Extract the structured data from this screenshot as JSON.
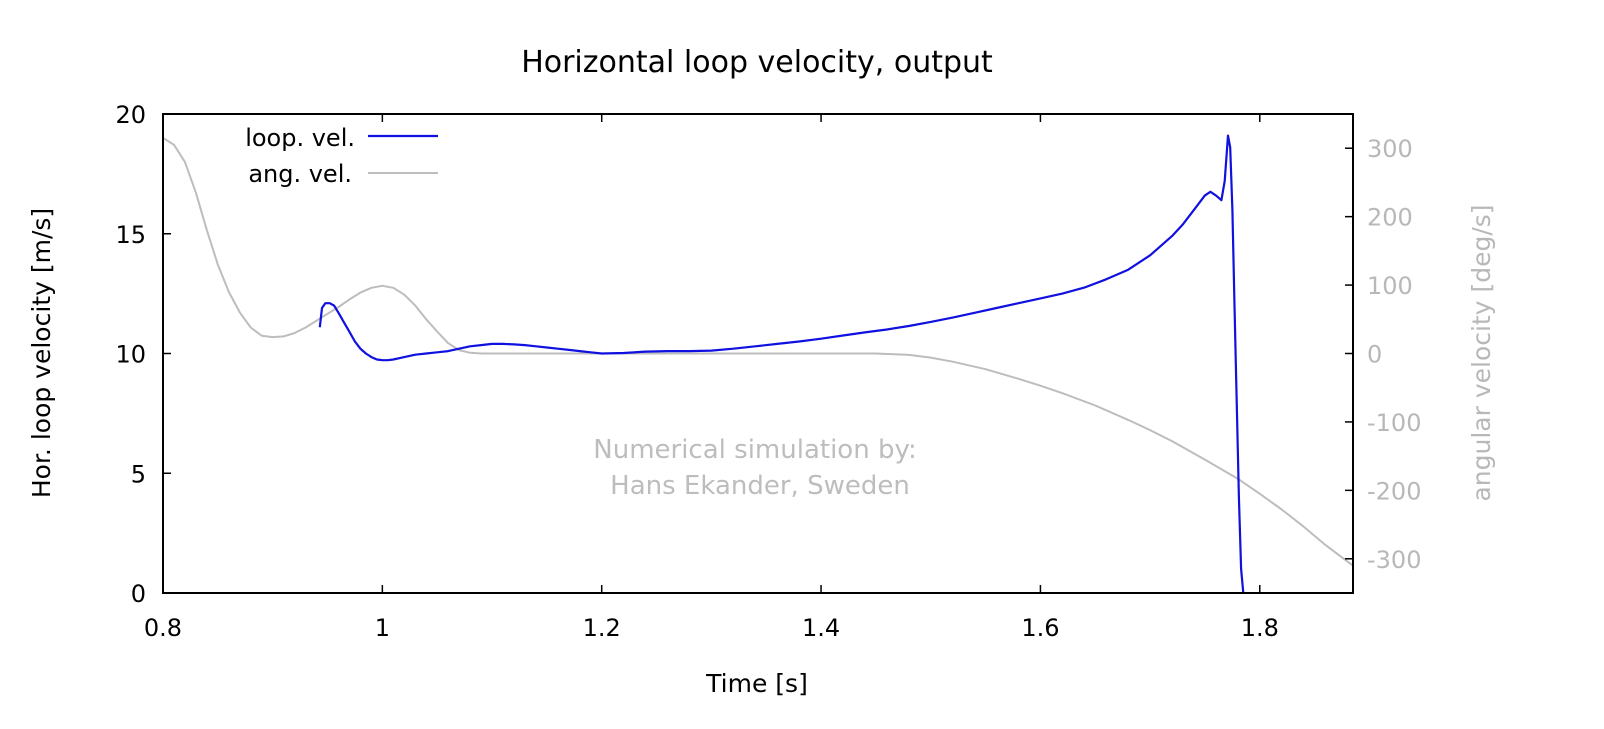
{
  "chart_data": {
    "type": "line",
    "title": "Horizontal loop velocity, output",
    "xlabel": "Time [s]",
    "ylabel": "Hor. loop velocity [m/s]",
    "y2label": "angular velocity [deg/s]",
    "xlim": [
      0.8,
      1.885
    ],
    "ylim": [
      0,
      20
    ],
    "y2lim": [
      -350,
      350
    ],
    "xticks": [
      0.8,
      1.0,
      1.2,
      1.4,
      1.6,
      1.8
    ],
    "xtick_labels": [
      "0.8",
      "1",
      "1.2",
      "1.4",
      "1.6",
      "1.8"
    ],
    "yticks": [
      0,
      5,
      10,
      15,
      20
    ],
    "ytick_labels": [
      "0",
      "5",
      "10",
      "15",
      "20"
    ],
    "y2ticks": [
      -300,
      -200,
      -100,
      0,
      100,
      200,
      300
    ],
    "y2tick_labels": [
      "-300",
      "-200",
      "-100",
      "0",
      "100",
      "200",
      "300"
    ],
    "grid": false,
    "legend_position": "top-left",
    "annotation_lines": [
      "Numerical simulation by:",
      "Hans Ekander, Sweden"
    ],
    "series": [
      {
        "name": "loop. vel.",
        "axis": "left",
        "color": "#1010e0",
        "x": [
          0.943,
          0.945,
          0.948,
          0.952,
          0.956,
          0.96,
          0.965,
          0.97,
          0.975,
          0.98,
          0.985,
          0.99,
          0.995,
          1.0,
          1.005,
          1.01,
          1.02,
          1.03,
          1.04,
          1.05,
          1.06,
          1.07,
          1.08,
          1.09,
          1.1,
          1.11,
          1.12,
          1.13,
          1.14,
          1.15,
          1.16,
          1.17,
          1.18,
          1.19,
          1.2,
          1.22,
          1.24,
          1.26,
          1.28,
          1.3,
          1.32,
          1.34,
          1.36,
          1.38,
          1.4,
          1.42,
          1.44,
          1.46,
          1.48,
          1.5,
          1.52,
          1.54,
          1.56,
          1.58,
          1.6,
          1.62,
          1.64,
          1.66,
          1.68,
          1.7,
          1.72,
          1.73,
          1.74,
          1.75,
          1.755,
          1.76,
          1.765,
          1.768,
          1.771,
          1.773,
          1.775,
          1.777,
          1.779,
          1.781,
          1.783,
          1.785
        ],
        "y": [
          11.1,
          11.9,
          12.1,
          12.1,
          12.0,
          11.7,
          11.3,
          10.9,
          10.5,
          10.2,
          10.0,
          9.85,
          9.75,
          9.72,
          9.72,
          9.75,
          9.85,
          9.95,
          10.0,
          10.05,
          10.1,
          10.2,
          10.3,
          10.35,
          10.4,
          10.4,
          10.38,
          10.35,
          10.3,
          10.25,
          10.2,
          10.15,
          10.1,
          10.05,
          10.0,
          10.02,
          10.08,
          10.1,
          10.1,
          10.12,
          10.2,
          10.3,
          10.4,
          10.5,
          10.62,
          10.75,
          10.88,
          11.0,
          11.15,
          11.32,
          11.5,
          11.7,
          11.9,
          12.1,
          12.3,
          12.5,
          12.75,
          13.1,
          13.5,
          14.1,
          14.9,
          15.4,
          16.0,
          16.6,
          16.75,
          16.6,
          16.4,
          17.2,
          19.1,
          18.6,
          16.0,
          12.0,
          8.0,
          4.0,
          1.0,
          0.0
        ]
      },
      {
        "name": "ang. vel.",
        "axis": "right",
        "color": "#bdbdbd",
        "x": [
          0.8,
          0.81,
          0.82,
          0.83,
          0.84,
          0.85,
          0.86,
          0.87,
          0.88,
          0.89,
          0.9,
          0.91,
          0.92,
          0.93,
          0.94,
          0.95,
          0.96,
          0.97,
          0.98,
          0.99,
          1.0,
          1.01,
          1.02,
          1.03,
          1.04,
          1.05,
          1.06,
          1.07,
          1.08,
          1.09,
          1.1,
          1.15,
          1.2,
          1.25,
          1.3,
          1.35,
          1.4,
          1.45,
          1.48,
          1.5,
          1.52,
          1.55,
          1.58,
          1.6,
          1.62,
          1.65,
          1.68,
          1.7,
          1.72,
          1.75,
          1.78,
          1.8,
          1.82,
          1.84,
          1.86,
          1.875,
          1.885
        ],
        "y": [
          315,
          305,
          280,
          235,
          180,
          130,
          90,
          60,
          38,
          26,
          24,
          25,
          30,
          38,
          48,
          58,
          68,
          79,
          89,
          96,
          99,
          96,
          86,
          70,
          50,
          32,
          15,
          5,
          1,
          0,
          0,
          0,
          0,
          0,
          0,
          0,
          0,
          0,
          -2,
          -6,
          -12,
          -23,
          -37,
          -47,
          -58,
          -76,
          -97,
          -112,
          -128,
          -155,
          -183,
          -205,
          -228,
          -253,
          -280,
          -298,
          -310
        ]
      }
    ]
  }
}
